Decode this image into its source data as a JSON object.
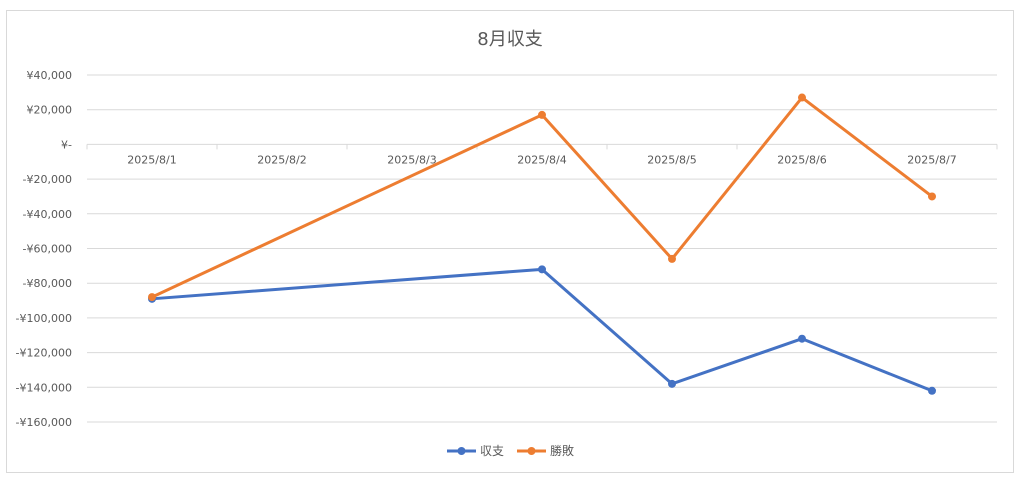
{
  "chart_data": {
    "type": "line",
    "title": "8月収支",
    "xlabel": "",
    "ylabel": "",
    "categories": [
      "2025/8/1",
      "2025/8/2",
      "2025/8/3",
      "2025/8/4",
      "2025/8/5",
      "2025/8/6",
      "2025/8/7"
    ],
    "y_ticks": [
      "¥40,000",
      "¥20,000",
      "¥-",
      "-¥20,000",
      "-¥40,000",
      "-¥60,000",
      "-¥80,000",
      "-¥100,000",
      "-¥120,000",
      "-¥140,000",
      "-¥160,000"
    ],
    "ylim": [
      -160000,
      40000
    ],
    "grid": true,
    "legend_position": "bottom",
    "series": [
      {
        "name": "収支",
        "color": "#4472C4",
        "points": [
          {
            "x": "2025/8/1",
            "y": -89000
          },
          {
            "x": "2025/8/4",
            "y": -72000
          },
          {
            "x": "2025/8/5",
            "y": -138000
          },
          {
            "x": "2025/8/6",
            "y": -112000
          },
          {
            "x": "2025/8/7",
            "y": -142000
          }
        ]
      },
      {
        "name": "勝敗",
        "color": "#ED7D31",
        "points": [
          {
            "x": "2025/8/1",
            "y": -88000
          },
          {
            "x": "2025/8/4",
            "y": 17000
          },
          {
            "x": "2025/8/5",
            "y": -66000
          },
          {
            "x": "2025/8/6",
            "y": 27000
          },
          {
            "x": "2025/8/7",
            "y": -30000
          }
        ]
      }
    ]
  }
}
